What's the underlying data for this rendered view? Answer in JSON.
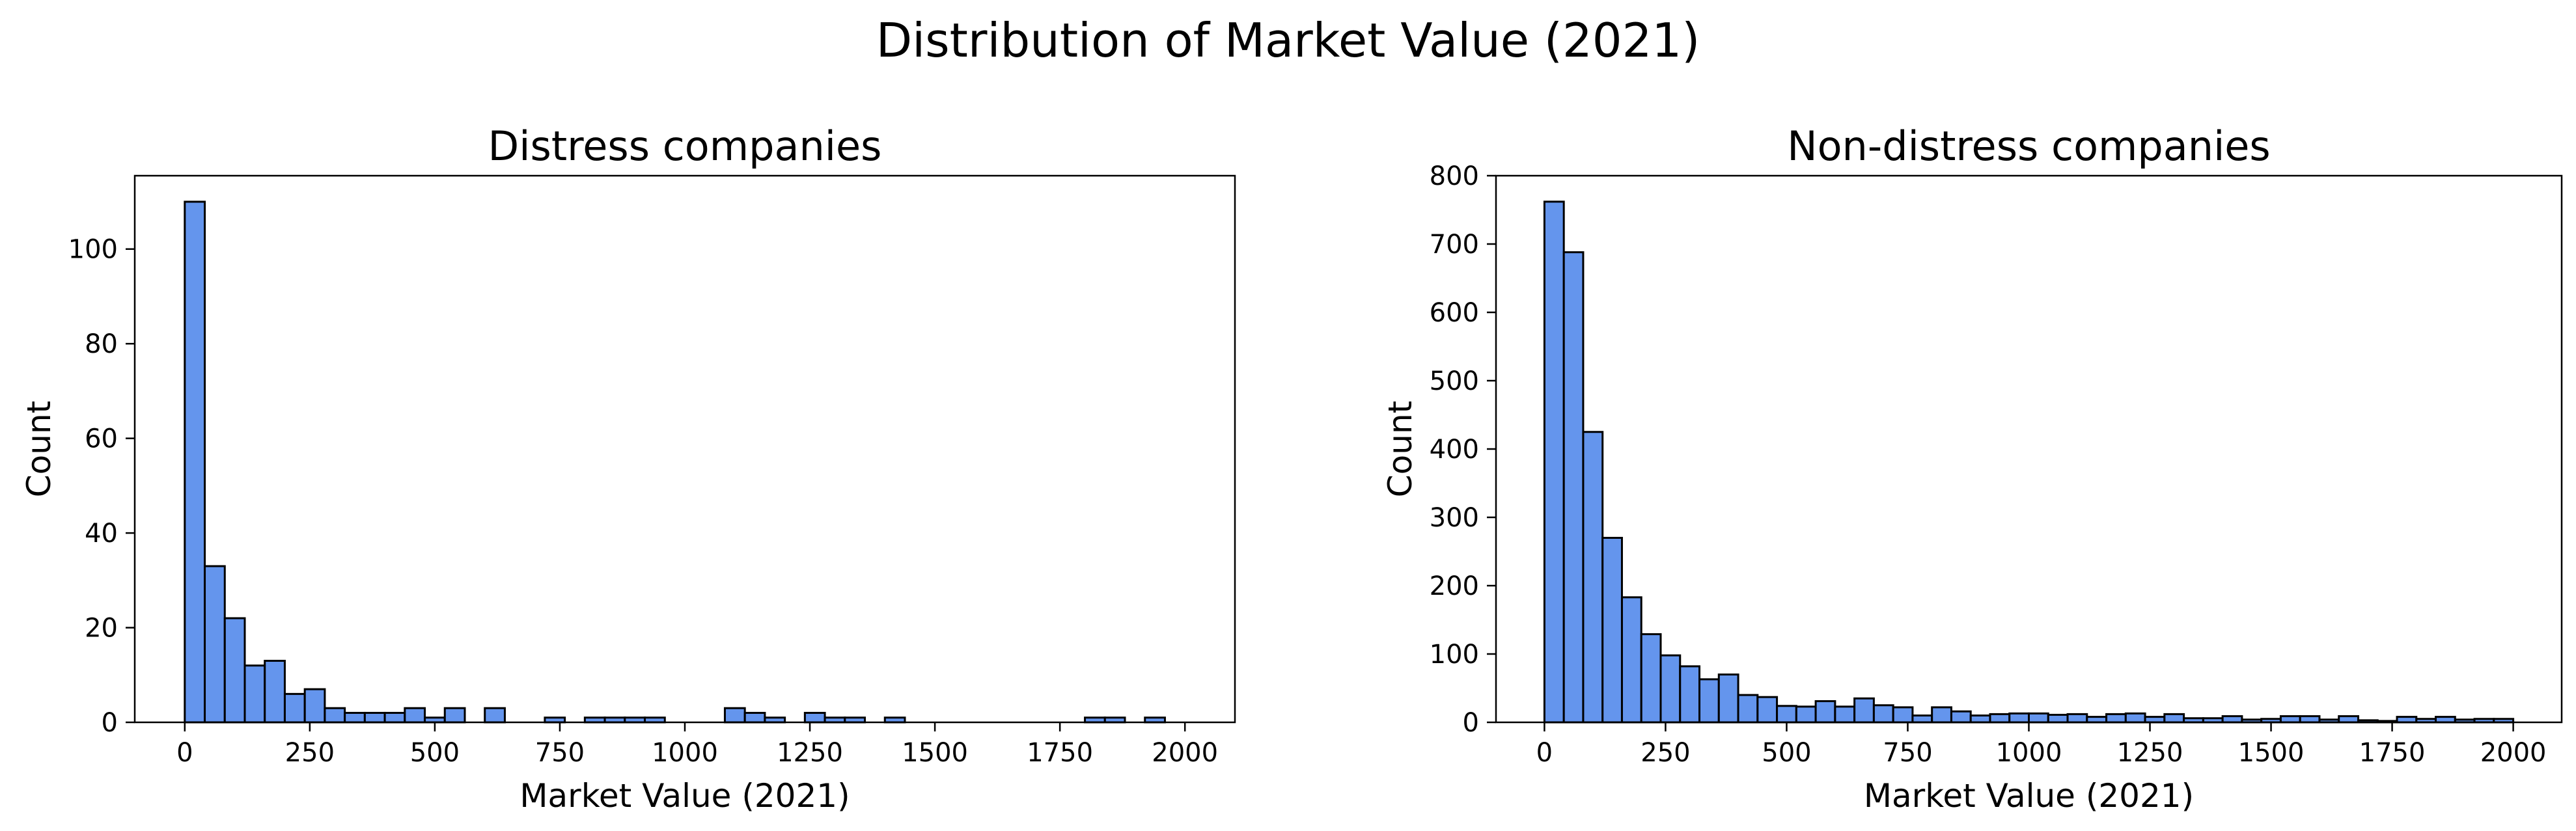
{
  "figure": {
    "title": "Distribution of Market Value (2021)"
  },
  "style": {
    "bar_fill": "#6495ED",
    "bar_edge": "#000000"
  },
  "chart_data": [
    {
      "type": "bar",
      "title": "Distress companies",
      "xlabel": "Market Value (2021)",
      "ylabel": "Count",
      "xlim": [
        -100,
        2100
      ],
      "ylim": [
        0,
        115.5
      ],
      "xticks": [
        0,
        250,
        500,
        750,
        1000,
        1250,
        1500,
        1750,
        2000
      ],
      "yticks": [
        0,
        20,
        40,
        60,
        80,
        100
      ],
      "bin_start": 0,
      "bin_width": 40,
      "values": [
        110,
        33,
        22,
        12,
        13,
        6,
        7,
        3,
        2,
        2,
        2,
        3,
        1,
        3,
        0,
        3,
        0,
        0,
        1,
        0,
        1,
        1,
        1,
        1,
        0,
        0,
        0,
        3,
        2,
        1,
        0,
        2,
        1,
        1,
        0,
        1,
        0,
        0,
        0,
        0,
        0,
        0,
        0,
        0,
        0,
        1,
        1,
        0,
        1,
        0
      ],
      "grid": false,
      "legend": "none"
    },
    {
      "type": "bar",
      "title": "Non-distress companies",
      "xlabel": "Market Value (2021)",
      "ylabel": "Count",
      "xlim": [
        -100,
        2100
      ],
      "ylim": [
        0,
        800
      ],
      "xticks": [
        0,
        250,
        500,
        750,
        1000,
        1250,
        1500,
        1750,
        2000
      ],
      "yticks": [
        0,
        100,
        200,
        300,
        400,
        500,
        600,
        700,
        800
      ],
      "bin_start": 0,
      "bin_width": 40,
      "values": [
        762,
        688,
        425,
        270,
        183,
        129,
        98,
        82,
        63,
        70,
        40,
        37,
        24,
        23,
        31,
        23,
        35,
        25,
        22,
        10,
        22,
        16,
        10,
        12,
        13,
        13,
        11,
        12,
        8,
        12,
        13,
        8,
        12,
        6,
        6,
        9,
        4,
        5,
        9,
        9,
        4,
        9,
        3,
        2,
        8,
        5,
        8,
        4,
        5,
        5
      ],
      "grid": false,
      "legend": "none"
    }
  ]
}
